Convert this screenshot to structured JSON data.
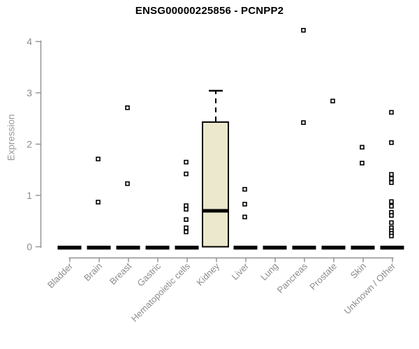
{
  "title": "ENSG00000225856 - PCNPP2",
  "chart_data": {
    "type": "box",
    "title": "ENSG00000225856 - PCNPP2",
    "xlabel": "",
    "ylabel": "Expression",
    "ylim": [
      0,
      4.3
    ],
    "yticks": [
      0,
      1,
      2,
      3,
      4
    ],
    "grid": false,
    "legend": "none",
    "marker": "open-square",
    "colors": {
      "box_fill": "#ece8cd",
      "box_stroke": "#000000",
      "median": "#000000",
      "zero_bar": "#000000",
      "point_stroke": "#000000",
      "axis_line": "#909090",
      "tick_label": "#8c8c8c",
      "title_text": "#000000",
      "background": "#ffffff"
    },
    "categories": [
      "Bladder",
      "Brain",
      "Breast",
      "Gastric",
      "Hematopoietic cells",
      "Kidney",
      "Liver",
      "Lung",
      "Pancreas",
      "Prostate",
      "Skin",
      "Unknown / Other"
    ],
    "series": [
      {
        "category": "Bladder",
        "median": 0,
        "box": null,
        "points": []
      },
      {
        "category": "Brain",
        "median": 0,
        "box": null,
        "points": [
          1.71,
          0.87
        ]
      },
      {
        "category": "Breast",
        "median": 0,
        "box": null,
        "points": [
          2.71,
          1.23
        ]
      },
      {
        "category": "Gastric",
        "median": 0,
        "box": null,
        "points": []
      },
      {
        "category": "Hematopoietic cells",
        "median": 0,
        "box": null,
        "points": [
          1.65,
          1.42,
          0.8,
          0.73,
          0.53,
          0.37,
          0.29
        ]
      },
      {
        "category": "Kidney",
        "median": 0.7,
        "box": {
          "q1": 0,
          "median": 0.7,
          "q3": 2.43,
          "whisker_high": 3.04
        },
        "points": []
      },
      {
        "category": "Liver",
        "median": 0,
        "box": null,
        "points": [
          1.12,
          0.83,
          0.58
        ]
      },
      {
        "category": "Lung",
        "median": 0,
        "box": null,
        "points": []
      },
      {
        "category": "Pancreas",
        "median": 0,
        "box": null,
        "points": [
          4.22,
          2.42
        ]
      },
      {
        "category": "Prostate",
        "median": 0,
        "box": null,
        "points": [
          2.84
        ]
      },
      {
        "category": "Skin",
        "median": 0,
        "box": null,
        "points": [
          1.94,
          1.63
        ]
      },
      {
        "category": "Unknown / Other",
        "median": 0,
        "box": null,
        "points": [
          2.62,
          2.03,
          1.41,
          1.33,
          1.25,
          0.88,
          0.79,
          0.67,
          0.61,
          0.47,
          0.37,
          0.31,
          0.26,
          0.21
        ]
      }
    ]
  }
}
